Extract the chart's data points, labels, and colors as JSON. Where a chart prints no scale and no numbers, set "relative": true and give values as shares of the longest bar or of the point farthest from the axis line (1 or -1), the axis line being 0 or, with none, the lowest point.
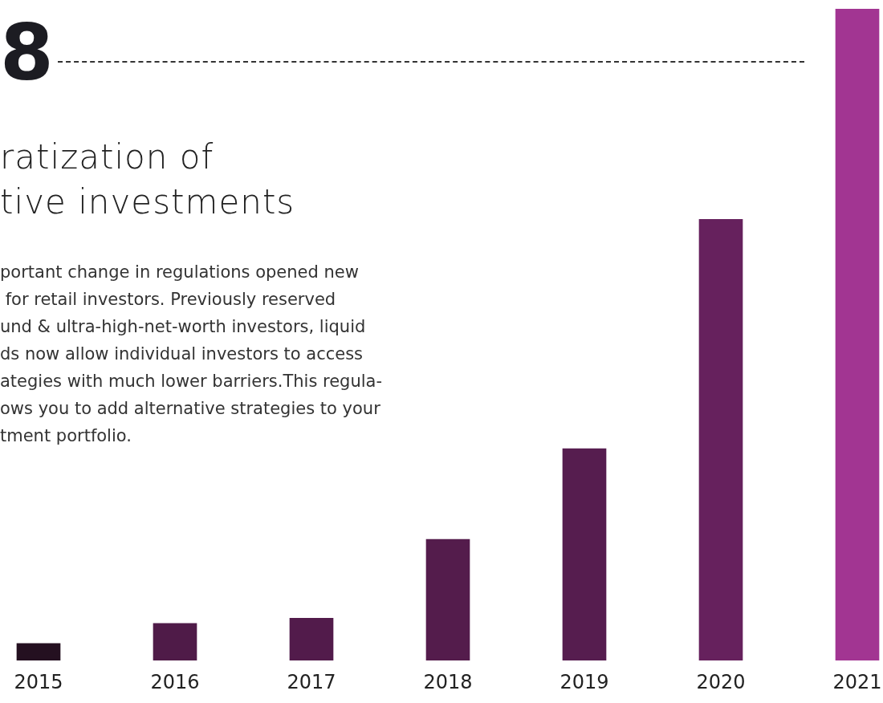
{
  "chart_data": {
    "type": "bar",
    "title": "8",
    "subtitle": "ratization of\ntive investments",
    "annotations": [
      "portant change in regulations opened new\n for retail investors. Previously reserved\nund & ultra-high-net-worth investors, liquid\nds now allow individual investors to access\nategies with much lower barriers.This regula-\nows you to add alternative strategies to your\ntment portfolio."
    ],
    "categories": [
      "2015",
      "2016",
      "2017",
      "2018",
      "2019",
      "2020",
      "2021"
    ],
    "values": [
      0.026,
      0.057,
      0.065,
      0.186,
      0.325,
      0.677,
      1
    ],
    "colors": [
      "#241020",
      "#4f1b48",
      "#521b4b",
      "#541c4c",
      "#561d4f",
      "#66215d",
      "#a23592"
    ],
    "relative": true
  }
}
